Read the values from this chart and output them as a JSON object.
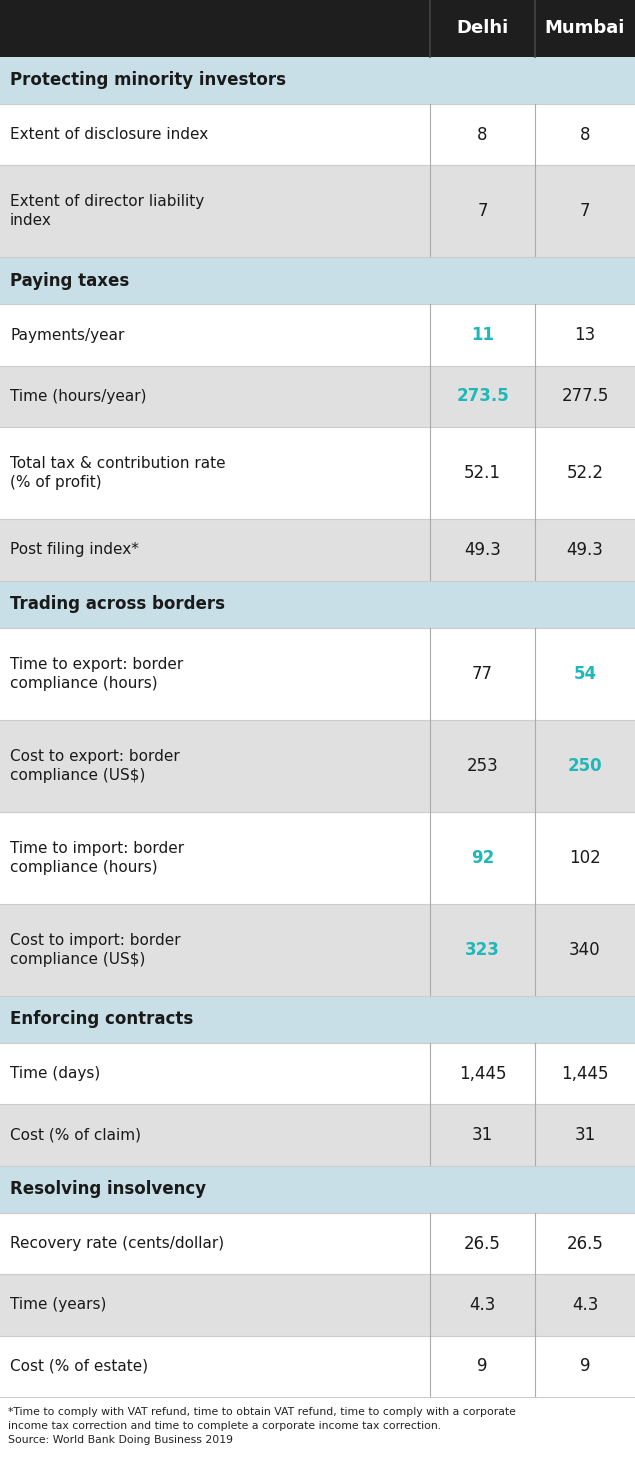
{
  "header_bg": "#1e1e1e",
  "header_text_color": "#ffffff",
  "section_title_bg": "#c8dfe8",
  "highlight_color": "#1fb8b8",
  "normal_text_color": "#1a1a1a",
  "col_divider_color": "#aaaaaa",
  "row_divider_color": "#cccccc",
  "white_row_bg": "#ffffff",
  "gray_row_bg": "#e0e0e0",
  "sections": [
    {
      "title": "Protecting minority investors",
      "rows": [
        {
          "label": "Extent of disclosure index",
          "delhi": "8",
          "mumbai": "8",
          "dh": false,
          "mh": false,
          "two_line": false
        },
        {
          "label": "Extent of director liability\nindex",
          "delhi": "7",
          "mumbai": "7",
          "dh": false,
          "mh": false,
          "two_line": true
        }
      ]
    },
    {
      "title": "Paying taxes",
      "rows": [
        {
          "label": "Payments/year",
          "delhi": "11",
          "mumbai": "13",
          "dh": true,
          "mh": false,
          "two_line": false
        },
        {
          "label": "Time (hours/year)",
          "delhi": "273.5",
          "mumbai": "277.5",
          "dh": true,
          "mh": false,
          "two_line": false
        },
        {
          "label": "Total tax & contribution rate\n(% of profit)",
          "delhi": "52.1",
          "mumbai": "52.2",
          "dh": false,
          "mh": false,
          "two_line": true
        },
        {
          "label": "Post filing index*",
          "delhi": "49.3",
          "mumbai": "49.3",
          "dh": false,
          "mh": false,
          "two_line": false
        }
      ]
    },
    {
      "title": "Trading across borders",
      "rows": [
        {
          "label": "Time to export: border\ncompliance (hours)",
          "delhi": "77",
          "mumbai": "54",
          "dh": false,
          "mh": true,
          "two_line": true
        },
        {
          "label": "Cost to export: border\ncompliance (US$)",
          "delhi": "253",
          "mumbai": "250",
          "dh": false,
          "mh": true,
          "two_line": true
        },
        {
          "label": "Time to import: border\ncompliance (hours)",
          "delhi": "92",
          "mumbai": "102",
          "dh": true,
          "mh": false,
          "two_line": true
        },
        {
          "label": "Cost to import: border\ncompliance (US$)",
          "delhi": "323",
          "mumbai": "340",
          "dh": true,
          "mh": false,
          "two_line": true
        }
      ]
    },
    {
      "title": "Enforcing contracts",
      "rows": [
        {
          "label": "Time (days)",
          "delhi": "1,445",
          "mumbai": "1,445",
          "dh": false,
          "mh": false,
          "two_line": false
        },
        {
          "label": "Cost (% of claim)",
          "delhi": "31",
          "mumbai": "31",
          "dh": false,
          "mh": false,
          "two_line": false
        }
      ]
    },
    {
      "title": "Resolving insolvency",
      "rows": [
        {
          "label": "Recovery rate (cents/dollar)",
          "delhi": "26.5",
          "mumbai": "26.5",
          "dh": false,
          "mh": false,
          "two_line": false
        },
        {
          "label": "Time (years)",
          "delhi": "4.3",
          "mumbai": "4.3",
          "dh": false,
          "mh": false,
          "two_line": false
        },
        {
          "label": "Cost (% of estate)",
          "delhi": "9",
          "mumbai": "9",
          "dh": false,
          "mh": false,
          "two_line": false
        }
      ]
    }
  ],
  "footnote_line1": "*Time to comply with VAT refund, time to obtain VAT refund, time to comply with a corporate",
  "footnote_line2": "income tax correction and time to complete a corporate income tax correction.",
  "footnote_line3": "Source: World Bank Doing Business 2019"
}
